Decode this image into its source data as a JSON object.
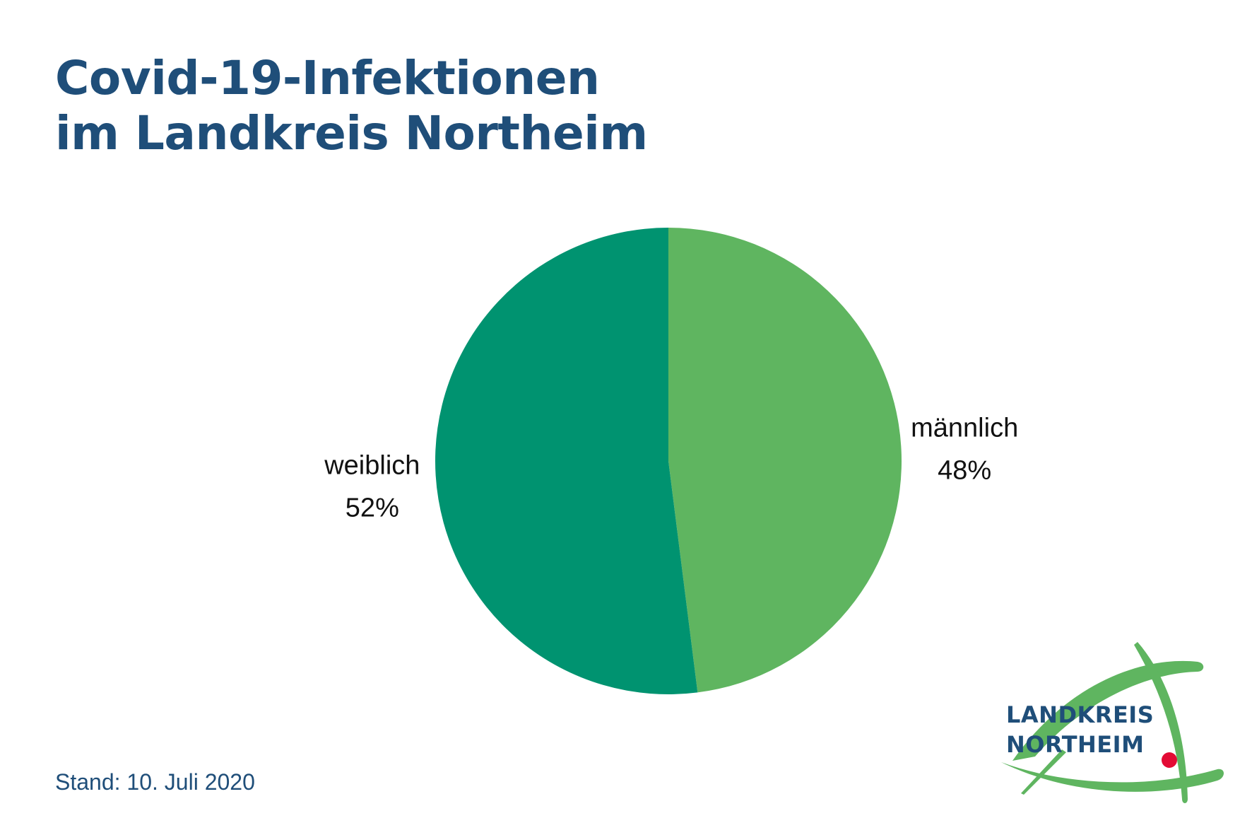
{
  "title": {
    "line1": "Covid-19-Infektionen",
    "line2": "im Landkreis Northeim"
  },
  "footer": {
    "stand": "Stand: 10. Juli 2020"
  },
  "logo": {
    "line1": "LANDKREIS",
    "line2": "NORTHEIM",
    "colors": {
      "text": "#1f4e79",
      "swoosh": "#5fb560",
      "dot": "#e30b35"
    }
  },
  "chart_data": {
    "type": "pie",
    "title": "Covid-19-Infektionen im Landkreis Northeim",
    "slices": [
      {
        "label": "männlich",
        "value": 48,
        "value_label": "48%",
        "color": "#5fb560"
      },
      {
        "label": "weiblich",
        "value": 52,
        "value_label": "52%",
        "color": "#009370"
      }
    ],
    "start_angle": "12 o'clock",
    "direction": "clockwise",
    "legend": "none (labels beside slices)"
  }
}
